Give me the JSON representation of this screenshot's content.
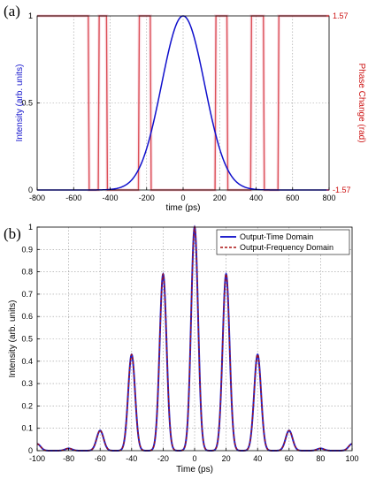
{
  "colors": {
    "intensity_blue": "#1010cc",
    "phase_red": "#cc1111",
    "time_domain_blue": "#2222cc",
    "freq_domain_red": "#aa1111",
    "grid": "#9a9a9a"
  },
  "chart_data": [
    {
      "type": "line",
      "panel_label": "(a)",
      "title": "",
      "xlabel": "time (ps)",
      "ylabel": "Intensity (arb. units)",
      "ylabel_right": "Phase Change (rad)",
      "xlim": [
        -800,
        800
      ],
      "ylim": [
        0,
        1
      ],
      "ylim_right": [
        -1.57,
        1.57
      ],
      "xticks": [
        -800,
        -600,
        -400,
        -200,
        0,
        200,
        400,
        600,
        800
      ],
      "xtick_labels": [
        "-800",
        "-600",
        "-400",
        "-200",
        "0",
        "200",
        "400",
        "600",
        "800"
      ],
      "yticks": [
        0,
        0.5,
        1
      ],
      "ytick_labels": [
        "0",
        "0.5",
        "1"
      ],
      "yticks_right": [
        -1.57,
        1.57
      ],
      "ytick_labels_right": [
        "-1.57",
        "1.57"
      ],
      "grid": true,
      "series": [
        {
          "axis": "left",
          "shape": "gaussian",
          "peak": 1,
          "center": 0,
          "sigma": 118
        },
        {
          "axis": "right",
          "shape": "binary-phase",
          "high": 1.57,
          "low": -1.57,
          "x": [
            -800,
            -520,
            -515,
            -465,
            -460,
            -420,
            -415,
            -245,
            -240,
            -180,
            -175,
            175,
            180,
            240,
            245,
            370,
            375,
            440,
            445,
            520,
            525,
            800
          ],
          "y": [
            1.57,
            1.57,
            -1.57,
            -1.57,
            1.57,
            1.57,
            -1.57,
            -1.57,
            1.57,
            1.57,
            -1.57,
            -1.57,
            1.57,
            1.57,
            -1.57,
            -1.57,
            1.57,
            1.57,
            -1.57,
            -1.57,
            1.57,
            1.57
          ]
        }
      ]
    },
    {
      "type": "line",
      "panel_label": "(b)",
      "title": "",
      "xlabel": "Time (ps)",
      "ylabel": "Intensity (arb. units)",
      "xlim": [
        -100,
        100
      ],
      "ylim": [
        0,
        1
      ],
      "xticks": [
        -100,
        -80,
        -60,
        -40,
        -20,
        0,
        20,
        40,
        60,
        80,
        100
      ],
      "xtick_labels": [
        "-100",
        "-80",
        "-60",
        "-40",
        "-20",
        "0",
        "20",
        "40",
        "60",
        "80",
        "100"
      ],
      "yticks": [
        0,
        0.1,
        0.2,
        0.3,
        0.4,
        0.5,
        0.6,
        0.7,
        0.8,
        0.9,
        1
      ],
      "ytick_labels": [
        "0",
        "0.1",
        "0.2",
        "0.3",
        "0.4",
        "0.5",
        "0.6",
        "0.7",
        "0.8",
        "0.9",
        "1"
      ],
      "grid": true,
      "legend_position": "top-right",
      "pulse_width_ps": 2.2,
      "peaks": [
        {
          "x": -100,
          "y": 0.03
        },
        {
          "x": -80,
          "y": 0.01
        },
        {
          "x": -60,
          "y": 0.09
        },
        {
          "x": -40,
          "y": 0.43
        },
        {
          "x": -20,
          "y": 0.79
        },
        {
          "x": 0,
          "y": 1.0
        },
        {
          "x": 20,
          "y": 0.79
        },
        {
          "x": 40,
          "y": 0.43
        },
        {
          "x": 60,
          "y": 0.09
        },
        {
          "x": 80,
          "y": 0.01
        },
        {
          "x": 100,
          "y": 0.03
        }
      ],
      "series": [
        {
          "name": "Output-Time Domain",
          "style": "solid"
        },
        {
          "name": "Output-Frequency Domain",
          "style": "dashed"
        }
      ]
    }
  ]
}
